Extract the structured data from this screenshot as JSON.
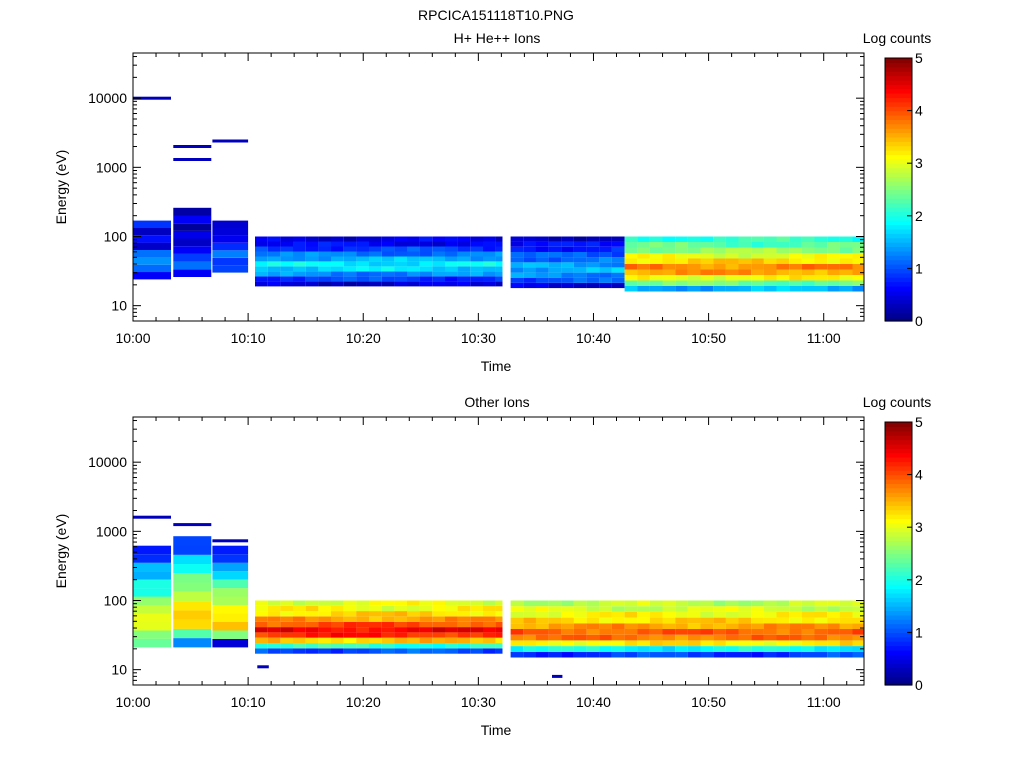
{
  "title": "RPCICA151118T10.PNG",
  "palette": {
    "background": "#ffffff",
    "colormap": [
      "#00007f",
      "#0000ff",
      "#0080ff",
      "#00ffff",
      "#80ff80",
      "#ffff00",
      "#ff8000",
      "#ff0000",
      "#7f0000"
    ]
  },
  "chart_data": [
    {
      "type": "heatmap",
      "id": "h-he-ions",
      "title": "H+ He++ Ions",
      "xlabel": "Time",
      "ylabel": "Energy (eV)",
      "x_unit": "minutes after 10:00",
      "xlim": [
        0,
        63.5
      ],
      "ylim": [
        6,
        45000
      ],
      "yscale": "log",
      "x_ticks": [
        {
          "value": 0,
          "label": "10:00"
        },
        {
          "value": 10,
          "label": "10:10"
        },
        {
          "value": 20,
          "label": "10:20"
        },
        {
          "value": 30,
          "label": "10:30"
        },
        {
          "value": 40,
          "label": "10:40"
        },
        {
          "value": 50,
          "label": "10:50"
        },
        {
          "value": 60,
          "label": "11:00"
        }
      ],
      "y_ticks": [
        {
          "value": 10,
          "label": "10"
        },
        {
          "value": 100,
          "label": "100"
        },
        {
          "value": 1000,
          "label": "1000"
        },
        {
          "value": 10000,
          "label": "10000"
        }
      ],
      "colorbar": {
        "label": "Log counts",
        "range": [
          0,
          5
        ],
        "ticks": [
          "0",
          "1",
          "2",
          "3",
          "4",
          "5"
        ]
      },
      "segments": [
        {
          "t0": 0,
          "t1": 3.3,
          "dt": 3.3,
          "e_lo": 24,
          "e_hi": 170,
          "profile": [
            0.6,
            1.0,
            1.4,
            1.1,
            0.6,
            0.5,
            0.4,
            0.7
          ]
        },
        {
          "t0": 3.5,
          "t1": 6.8,
          "dt": 3.3,
          "e_lo": 26,
          "e_hi": 260,
          "profile": [
            0.4,
            1.2,
            1.0,
            0.6,
            0.4,
            0.3,
            0.3,
            0.5,
            0.4
          ]
        },
        {
          "t0": 6.9,
          "t1": 10.0,
          "dt": 3.1,
          "e_lo": 30,
          "e_hi": 170,
          "profile": [
            0.8,
            1.1,
            1.2,
            0.8,
            0.5,
            0.4,
            0.6
          ]
        },
        {
          "t0": 10.6,
          "t1": 32.1,
          "dt": 1.1,
          "e_lo": 19,
          "e_hi": 100,
          "profile": [
            0.4,
            0.9,
            1.3,
            1.7,
            1.8,
            1.5,
            1.2,
            0.9,
            0.6,
            0.5
          ]
        },
        {
          "t0": 32.8,
          "t1": 42.7,
          "dt": 1.1,
          "e_lo": 18,
          "e_hi": 100,
          "profile": [
            0.5,
            1.0,
            1.3,
            1.5,
            1.4,
            1.2,
            1.0,
            0.8,
            0.6,
            0.4
          ]
        },
        {
          "t0": 42.7,
          "t1": 63.5,
          "dt": 1.1,
          "e_lo": 16,
          "e_hi": 100,
          "profile": [
            1.5,
            2.4,
            3.1,
            3.6,
            3.7,
            3.3,
            3.0,
            2.6,
            2.3,
            2.1
          ]
        }
      ],
      "lines": [
        {
          "t0": 0,
          "t1": 3.3,
          "e": 10000,
          "value": 0.3
        },
        {
          "t0": 3.5,
          "t1": 6.8,
          "e": 2000,
          "value": 0.3
        },
        {
          "t0": 3.5,
          "t1": 6.8,
          "e": 1300,
          "value": 0.3
        },
        {
          "t0": 6.9,
          "t1": 10.0,
          "e": 2400,
          "value": 0.3
        }
      ]
    },
    {
      "type": "heatmap",
      "id": "other-ions",
      "title": "Other Ions",
      "xlabel": "Time",
      "ylabel": "Energy (eV)",
      "x_unit": "minutes after 10:00",
      "xlim": [
        0,
        63.5
      ],
      "ylim": [
        6,
        45000
      ],
      "yscale": "log",
      "x_ticks": [
        {
          "value": 0,
          "label": "10:00"
        },
        {
          "value": 10,
          "label": "10:10"
        },
        {
          "value": 20,
          "label": "10:20"
        },
        {
          "value": 30,
          "label": "10:30"
        },
        {
          "value": 40,
          "label": "10:40"
        },
        {
          "value": 50,
          "label": "10:50"
        },
        {
          "value": 60,
          "label": "11:00"
        }
      ],
      "y_ticks": [
        {
          "value": 10,
          "label": "10"
        },
        {
          "value": 100,
          "label": "100"
        },
        {
          "value": 1000,
          "label": "1000"
        },
        {
          "value": 10000,
          "label": "10000"
        }
      ],
      "colorbar": {
        "label": "Log counts",
        "range": [
          0,
          5
        ],
        "ticks": [
          "0",
          "1",
          "2",
          "3",
          "4",
          "5"
        ]
      },
      "segments": [
        {
          "t0": 0,
          "t1": 3.3,
          "dt": 3.3,
          "e_lo": 21,
          "e_hi": 620,
          "profile": [
            2.2,
            2.7,
            3.0,
            3.0,
            2.8,
            2.5,
            2.2,
            1.9,
            1.6,
            1.3,
            1.0,
            0.7
          ]
        },
        {
          "t0": 3.5,
          "t1": 6.8,
          "dt": 3.3,
          "e_lo": 21,
          "e_hi": 850,
          "profile": [
            1.2,
            2.5,
            3.1,
            3.4,
            3.2,
            2.9,
            2.6,
            2.3,
            2.0,
            1.6,
            1.2,
            0.8
          ]
        },
        {
          "t0": 6.9,
          "t1": 10.0,
          "dt": 3.1,
          "e_lo": 21,
          "e_hi": 620,
          "profile": [
            0.3,
            2.6,
            3.2,
            3.4,
            3.1,
            2.8,
            2.5,
            2.2,
            1.8,
            1.4,
            1.0,
            0.5
          ]
        },
        {
          "t0": 10.6,
          "t1": 32.1,
          "dt": 1.1,
          "e_lo": 17,
          "e_hi": 100,
          "profile": [
            1.0,
            2.1,
            3.4,
            4.2,
            4.4,
            4.0,
            3.6,
            3.3,
            3.1,
            3.0
          ]
        },
        {
          "t0": 32.8,
          "t1": 63.5,
          "dt": 1.1,
          "e_lo": 15,
          "e_hi": 100,
          "profile": [
            0.9,
            1.9,
            3.2,
            3.8,
            3.9,
            3.6,
            3.3,
            3.1,
            2.9,
            2.8
          ]
        }
      ],
      "lines": [
        {
          "t0": 0,
          "t1": 3.3,
          "e": 1600,
          "value": 0.3
        },
        {
          "t0": 3.5,
          "t1": 6.8,
          "e": 1250,
          "value": 0.3
        },
        {
          "t0": 6.9,
          "t1": 10.0,
          "e": 730,
          "value": 0.3
        },
        {
          "t0": 10.8,
          "t1": 11.8,
          "e": 11,
          "value": 0.3
        },
        {
          "t0": 36.4,
          "t1": 37.3,
          "e": 8,
          "value": 0.3
        }
      ]
    }
  ]
}
